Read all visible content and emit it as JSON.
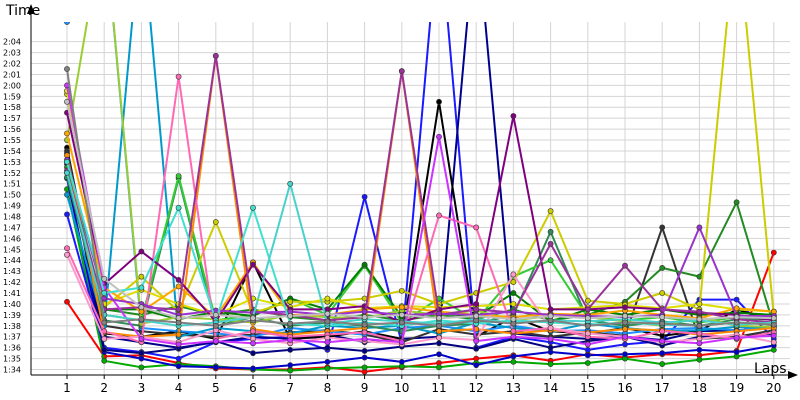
{
  "chart_data": {
    "type": "line",
    "title": "",
    "ylabel": "Time",
    "xlabel": "Laps",
    "grid": true,
    "legend": "none",
    "x_categories": [
      "1",
      "2",
      "3",
      "4",
      "5",
      "6",
      "7",
      "8",
      "9",
      "10",
      "11",
      "12",
      "13",
      "14",
      "15",
      "16",
      "17",
      "18",
      "19",
      "20"
    ],
    "y_tick_labels": [
      "1:34",
      "1:35",
      "1:36",
      "1:37",
      "1:38",
      "1:39",
      "1:40",
      "1:41",
      "1:42",
      "1:43",
      "1:44",
      "1:45",
      "1:46",
      "1:47",
      "1:48",
      "1:49",
      "1:50",
      "1:51",
      "1:52",
      "1:53",
      "1:54",
      "1:55",
      "1:56",
      "1:57",
      "1:58",
      "1:59",
      "2:00",
      "2:01",
      "2:02",
      "2:03",
      "2:04"
    ],
    "ylim": [
      93.5,
      125.8
    ],
    "series": [
      {
        "color": "#ff0000",
        "values": [
          100.2,
          95.2,
          95.3,
          94.6,
          94.1,
          94.0,
          94.0,
          94.2,
          93.8,
          94.2,
          94.6,
          95.0,
          95.3,
          94.8,
          95.4,
          95.1,
          95.4,
          95.3,
          95.7,
          104.7
        ]
      },
      {
        "color": "#00aa00",
        "values": [
          110.5,
          94.8,
          94.2,
          94.5,
          94.3,
          94.0,
          93.9,
          94.1,
          94.2,
          94.3,
          94.2,
          94.6,
          94.7,
          94.5,
          94.6,
          95.0,
          94.5,
          94.9,
          95.2,
          95.8
        ]
      },
      {
        "color": "#0000cc",
        "values": [
          111.5,
          95.6,
          95.0,
          94.3,
          94.2,
          94.1,
          94.4,
          94.7,
          95.1,
          94.7,
          95.4,
          94.4,
          95.2,
          95.6,
          95.3,
          95.4,
          95.5,
          95.8,
          95.6,
          96.2
        ]
      },
      {
        "color": "#1a1aff",
        "values": [
          108.2,
          96.0,
          95.6,
          95.0,
          96.5,
          96.8,
          97.0,
          95.8,
          109.8,
          96.4,
          135.0,
          96.0,
          97.0,
          96.5,
          95.8,
          96.3,
          96.6,
          100.4,
          100.4,
          96.8
        ]
      },
      {
        "color": "#000080",
        "values": [
          113.8,
          95.8,
          95.5,
          95.9,
          96.6,
          95.5,
          95.8,
          96.0,
          95.7,
          96.1,
          96.4,
          95.9,
          96.8,
          96.0,
          96.6,
          97.0,
          96.2,
          97.0,
          97.0,
          97.3
        ]
      },
      {
        "color": "#00008b",
        "values": [
          112.8,
          97.0,
          96.5,
          96.0,
          96.5,
          97.0,
          96.8,
          97.2,
          96.5,
          96.8,
          97.0,
          135.0,
          97.3,
          97.0,
          96.8,
          97.0,
          96.7,
          97.5,
          97.6,
          97.9
        ]
      },
      {
        "color": "#000000",
        "values": [
          114.3,
          97.3,
          97.0,
          97.5,
          96.8,
          103.8,
          96.8,
          97.0,
          97.5,
          96.8,
          118.5,
          97.0,
          98.8,
          97.5,
          97.3,
          97.8,
          97.1,
          97.5,
          99.5,
          98.5
        ]
      },
      {
        "color": "#333333",
        "values": [
          114.0,
          98.0,
          97.5,
          97.2,
          97.0,
          97.2,
          97.4,
          97.6,
          97.2,
          96.5,
          97.7,
          97.2,
          97.5,
          97.0,
          97.4,
          97.1,
          107.0,
          96.8,
          97.0,
          97.6
        ]
      },
      {
        "color": "#1e90ff",
        "values": [
          125.8,
          135.0,
          97.8,
          97.5,
          97.3,
          97.0,
          97.8,
          97.5,
          97.2,
          97.8,
          98.0,
          97.5,
          98.0,
          97.5,
          97.6,
          97.3,
          97.7,
          97.8,
          97.6,
          98.0
        ]
      },
      {
        "color": "#0099cc",
        "values": [
          110.0,
          98.0,
          135.0,
          97.0,
          97.8,
          97.5,
          97.3,
          98.0,
          97.8,
          98.0,
          97.3,
          98.3,
          97.8,
          97.5,
          98.2,
          97.8,
          97.5,
          97.6,
          97.9,
          97.8
        ]
      },
      {
        "color": "#2e8b57",
        "values": [
          111.6,
          98.5,
          98.0,
          111.5,
          98.0,
          98.8,
          98.0,
          98.3,
          98.0,
          97.5,
          98.0,
          98.2,
          99.0,
          106.6,
          98.5,
          98.0,
          98.4,
          98.0,
          98.6,
          98.6
        ]
      },
      {
        "color": "#228b22",
        "values": [
          112.5,
          99.5,
          99.0,
          99.8,
          99.0,
          99.5,
          98.8,
          98.5,
          99.0,
          98.5,
          99.0,
          98.6,
          99.5,
          98.5,
          99.0,
          100.2,
          103.3,
          102.5,
          109.3,
          98.0
        ]
      },
      {
        "color": "#33cc33",
        "values": [
          113.0,
          99.0,
          98.5,
          111.7,
          98.5,
          99.0,
          100.5,
          99.0,
          103.5,
          98.3,
          100.5,
          98.5,
          102.5,
          104.0,
          98.8,
          98.5,
          98.8,
          98.3,
          98.8,
          98.8
        ]
      },
      {
        "color": "#008000",
        "values": [
          112.0,
          99.5,
          99.5,
          98.6,
          99.3,
          98.9,
          100.5,
          99.5,
          103.6,
          98.8,
          99.2,
          98.8,
          101.0,
          98.4,
          99.5,
          99.0,
          99.5,
          99.0,
          99.2,
          99.0
        ]
      },
      {
        "color": "#9acd32",
        "values": [
          115.0,
          135.0,
          98.2,
          98.8,
          98.6,
          98.3,
          99.0,
          98.8,
          98.7,
          99.4,
          99.0,
          99.4,
          98.5,
          98.9,
          98.8,
          98.4,
          98.0,
          98.8,
          98.0,
          97.9
        ]
      },
      {
        "color": "#cccc00",
        "values": [
          119.2,
          99.7,
          102.5,
          99.3,
          107.5,
          99.2,
          100.2,
          100.2,
          100.5,
          101.2,
          100.0,
          101.0,
          102.0,
          108.5,
          100.3,
          100.0,
          101.0,
          99.5,
          135.0,
          98.9
        ]
      },
      {
        "color": "#dddd00",
        "values": [
          119.5,
          100.0,
          101.3,
          100.0,
          99.0,
          100.5,
          99.7,
          100.5,
          99.6,
          99.8,
          99.7,
          99.8,
          100.0,
          99.5,
          99.7,
          99.9,
          99.6,
          100.0,
          99.5,
          99.3
        ]
      },
      {
        "color": "#ffa500",
        "values": [
          115.6,
          101.5,
          99.3,
          101.6,
          98.8,
          103.8,
          99.0,
          99.0,
          99.5,
          99.7,
          99.3,
          99.0,
          98.8,
          99.1,
          99.0,
          99.4,
          99.0,
          98.7,
          99.6,
          99.3
        ]
      },
      {
        "color": "#ff8c00",
        "values": [
          113.6,
          97.4,
          97.0,
          97.2,
          122.7,
          97.7,
          97.2,
          97.5,
          97.8,
          121.3,
          97.5,
          97.7,
          97.3,
          97.6,
          97.4,
          97.7,
          97.6,
          97.2,
          97.5,
          97.8
        ]
      },
      {
        "color": "#ff69b4",
        "values": [
          105.1,
          97.5,
          96.5,
          120.8,
          96.8,
          97.5,
          97.0,
          97.2,
          97.4,
          96.6,
          108.1,
          107.0,
          97.5,
          97.8,
          97.0,
          96.8,
          97.5,
          97.3,
          96.8,
          97.4
        ]
      },
      {
        "color": "#ff99cc",
        "values": [
          104.5,
          96.8,
          97.0,
          96.5,
          97.6,
          96.8,
          96.4,
          96.9,
          96.6,
          96.3,
          96.9,
          96.7,
          102.7,
          97.8,
          97.3,
          97.0,
          96.5,
          96.8,
          97.2,
          96.5
        ]
      },
      {
        "color": "#800080",
        "values": [
          117.5,
          101.8,
          104.8,
          102.2,
          98.4,
          103.6,
          99.5,
          99.5,
          99.8,
          98.3,
          99.5,
          100.0,
          117.2,
          99.5,
          99.5,
          99.7,
          99.5,
          99.2,
          99.0,
          98.5
        ]
      },
      {
        "color": "#993399",
        "values": [
          112.2,
          99.5,
          99.7,
          99.5,
          122.7,
          99.3,
          99.0,
          98.5,
          98.8,
          121.3,
          99.0,
          99.5,
          99.2,
          105.5,
          99.5,
          103.5,
          99.5,
          99.3,
          98.6,
          98.3
        ]
      },
      {
        "color": "#cc33ff",
        "values": [
          120.0,
          101.5,
          96.8,
          96.3,
          96.6,
          96.4,
          96.7,
          96.5,
          96.8,
          96.5,
          115.3,
          96.6,
          97.0,
          96.8,
          96.3,
          97.0,
          96.6,
          96.4,
          96.9,
          97.1
        ]
      },
      {
        "color": "#9933cc",
        "values": [
          113.2,
          100.5,
          100.0,
          99.0,
          99.4,
          99.2,
          99.3,
          99.0,
          99.3,
          99.0,
          99.1,
          99.0,
          99.3,
          99.0,
          98.9,
          98.8,
          99.0,
          107.0,
          98.9,
          98.9
        ]
      },
      {
        "color": "#40e0d0",
        "values": [
          113.0,
          101.0,
          101.5,
          108.8,
          98.5,
          108.8,
          98.2,
          98.0,
          98.3,
          98.0,
          98.5,
          98.2,
          98.5,
          98.3,
          98.1,
          98.3,
          98.1,
          98.0,
          98.3,
          98.2
        ]
      },
      {
        "color": "#48d1cc",
        "values": [
          112.0,
          99.0,
          98.5,
          98.0,
          98.3,
          98.8,
          111.0,
          98.2,
          98.6,
          98.4,
          98.2,
          98.6,
          98.3,
          98.5,
          98.4,
          98.6,
          98.3,
          98.5,
          98.1,
          98.3
        ]
      },
      {
        "color": "#808080",
        "values": [
          121.5,
          98.3,
          98.6,
          98.3,
          98.0,
          98.5,
          98.2,
          98.4,
          98.1,
          98.3,
          98.0,
          98.5,
          98.2,
          98.5,
          98.0,
          98.3,
          98.2,
          98.0,
          98.3,
          98.1
        ]
      },
      {
        "color": "#c0c0c0",
        "values": [
          118.5,
          102.3,
          99.7,
          98.7,
          99.0,
          98.7,
          98.9,
          99.1,
          98.8,
          99.0,
          98.7,
          98.9,
          98.6,
          98.9,
          98.7,
          98.9,
          98.8,
          98.6,
          98.8,
          98.7
        ]
      }
    ]
  }
}
